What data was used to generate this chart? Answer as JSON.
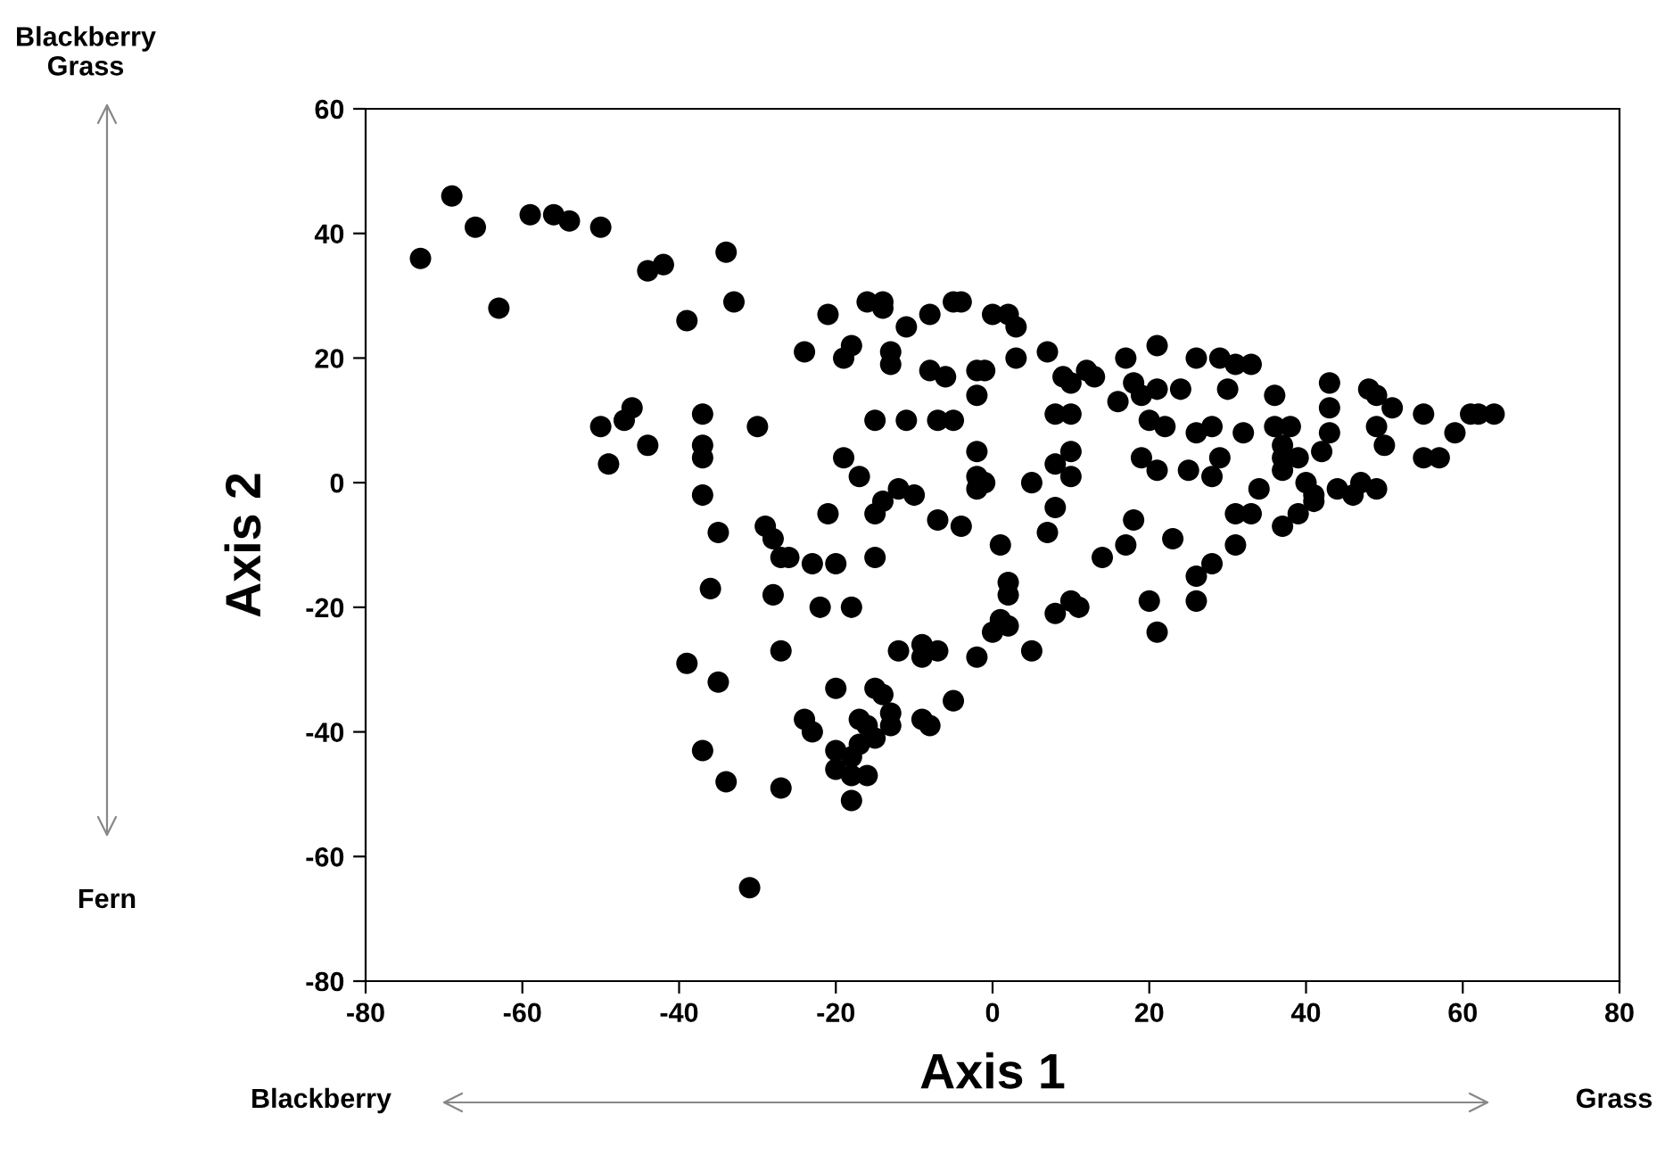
{
  "chart_data": {
    "type": "scatter",
    "xlabel": "Axis 1",
    "ylabel": "Axis 2",
    "annotations": [
      "Blackberry\nGrass",
      "Fern",
      "Blackberry",
      "Grass"
    ],
    "xlim": [
      -80,
      80
    ],
    "ylim": [
      -80,
      60
    ],
    "xticks": [
      -80,
      -60,
      -40,
      -20,
      0,
      20,
      40,
      60,
      80
    ],
    "yticks": [
      -80,
      -60,
      -40,
      -20,
      0,
      20,
      40,
      60
    ],
    "grid": false,
    "marker": "circle",
    "series": [
      {
        "color": "#000000",
        "x": [
          -73,
          -69,
          -66,
          -63,
          -59,
          -56,
          -54,
          -50,
          -44,
          -42,
          -39,
          -34,
          -33,
          -50,
          -47,
          -46,
          -44,
          -49,
          -37,
          -37,
          -37,
          -37,
          -30,
          -35,
          -29,
          -28,
          -21,
          -24,
          -19,
          -18,
          -16,
          -14,
          -14,
          -11,
          -8,
          -13,
          -13,
          -5,
          -4,
          0,
          2,
          3,
          3,
          7,
          -8,
          -6,
          -2,
          -1,
          -2,
          9,
          10,
          12,
          13,
          17,
          21,
          18,
          16,
          19,
          21,
          24,
          -15,
          -11,
          -7,
          -5,
          8,
          10,
          20,
          22,
          -19,
          -17,
          -2,
          -2,
          -1,
          -2,
          8,
          10,
          10,
          5,
          19,
          21,
          25,
          -14,
          -12,
          -10,
          -15,
          -21,
          -7,
          -4,
          8,
          7,
          18,
          17,
          23,
          1,
          14,
          -27,
          -26,
          -23,
          -20,
          -15,
          26,
          29,
          31,
          33,
          30,
          36,
          43,
          43,
          48,
          49,
          51,
          55,
          61,
          62,
          64,
          59,
          55,
          57,
          26,
          28,
          32,
          36,
          38,
          37,
          43,
          49,
          50,
          42,
          37,
          39,
          37,
          29,
          28,
          40,
          41,
          41,
          44,
          46,
          47,
          49,
          34,
          31,
          33,
          37,
          39,
          31,
          28,
          26,
          26,
          20,
          21,
          -36,
          -28,
          -22,
          -18,
          2,
          2,
          1,
          2,
          0,
          5,
          -12,
          -9,
          -9,
          -7,
          -2,
          -27,
          -39,
          -35,
          -20,
          -15,
          -14,
          -13,
          -13,
          -5,
          -9,
          -8,
          -24,
          -23,
          -17,
          -16,
          -17,
          -15,
          -20,
          -18,
          -20,
          -18,
          -16,
          -18,
          -37,
          -34,
          -27,
          -31,
          10,
          11,
          8
        ],
        "values": [
          36,
          46,
          41,
          28,
          43,
          43,
          42,
          41,
          34,
          35,
          26,
          37,
          29,
          9,
          10,
          12,
          6,
          3,
          11,
          6,
          4,
          -2,
          9,
          -8,
          -7,
          -9,
          27,
          21,
          20,
          22,
          29,
          29,
          28,
          25,
          27,
          21,
          19,
          29,
          29,
          27,
          27,
          25,
          20,
          21,
          18,
          17,
          18,
          18,
          14,
          17,
          16,
          18,
          17,
          20,
          22,
          16,
          13,
          14,
          15,
          15,
          10,
          10,
          10,
          10,
          11,
          11,
          10,
          9,
          4,
          1,
          5,
          1,
          0,
          -1,
          3,
          5,
          1,
          0,
          4,
          2,
          2,
          -3,
          -1,
          -2,
          -5,
          -5,
          -6,
          -7,
          -4,
          -8,
          -6,
          -10,
          -9,
          -10,
          -12,
          -12,
          -12,
          -13,
          -13,
          -12,
          20,
          20,
          19,
          19,
          15,
          14,
          16,
          12,
          15,
          14,
          12,
          11,
          11,
          11,
          11,
          8,
          4,
          4,
          8,
          9,
          8,
          9,
          9,
          6,
          8,
          9,
          6,
          5,
          4,
          4,
          2,
          4,
          1,
          0,
          -2,
          -3,
          -1,
          -2,
          0,
          -1,
          -1,
          -5,
          -5,
          -7,
          -5,
          -10,
          -13,
          -15,
          -19,
          -19,
          -24,
          -17,
          -18,
          -20,
          -20,
          -16,
          -18,
          -22,
          -23,
          -24,
          -27,
          -27,
          -26,
          -28,
          -27,
          -28,
          -27,
          -29,
          -32,
          -33,
          -33,
          -34,
          -37,
          -39,
          -35,
          -38,
          -39,
          -38,
          -40,
          -38,
          -39,
          -42,
          -41,
          -43,
          -44,
          -46,
          -47,
          -47,
          -51,
          -43,
          -48,
          -49,
          -65,
          -19,
          -20,
          -21
        ]
      }
    ]
  }
}
